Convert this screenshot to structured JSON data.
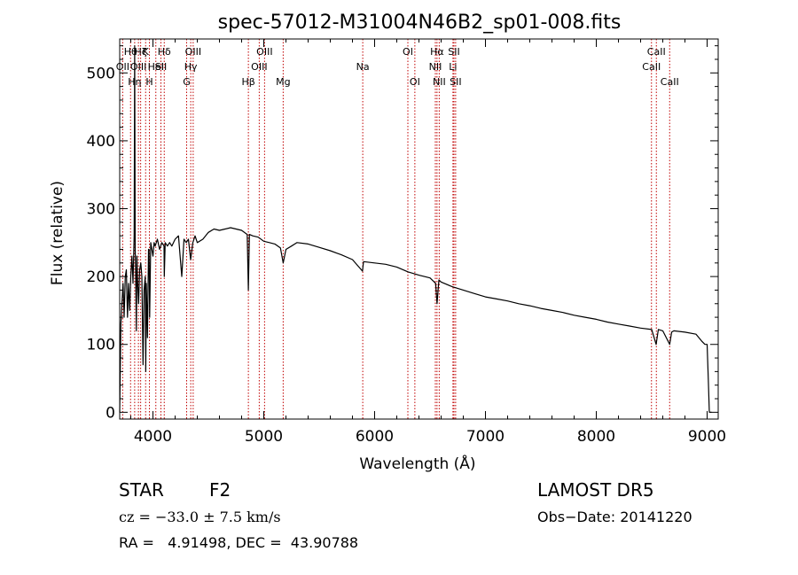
{
  "chart_data": {
    "type": "line",
    "title": "spec-57012-M31004N46B2_sp01-008.fits",
    "xlabel": "Wavelength (Å)",
    "ylabel": "Flux (relative)",
    "xlim": [
      3700,
      9100
    ],
    "ylim": [
      -10,
      550
    ],
    "xticks": [
      4000,
      5000,
      6000,
      7000,
      8000,
      9000
    ],
    "yticks": [
      0,
      100,
      200,
      300,
      400,
      500
    ],
    "series": [
      {
        "color": "#000000",
        "x": [
          3700,
          3705,
          3710,
          3720,
          3730,
          3740,
          3750,
          3760,
          3770,
          3780,
          3790,
          3800,
          3810,
          3820,
          3830,
          3835,
          3840,
          3845,
          3850,
          3855,
          3860,
          3865,
          3870,
          3880,
          3890,
          3900,
          3910,
          3920,
          3930,
          3935,
          3940,
          3950,
          3960,
          3965,
          3970,
          3980,
          3990,
          4000,
          4010,
          4020,
          4040,
          4060,
          4080,
          4100,
          4102,
          4110,
          4130,
          4150,
          4170,
          4200,
          4230,
          4260,
          4280,
          4300,
          4320,
          4340,
          4360,
          4380,
          4400,
          4450,
          4500,
          4550,
          4600,
          4650,
          4700,
          4750,
          4800,
          4850,
          4861,
          4870,
          4900,
          4950,
          5000,
          5050,
          5100,
          5150,
          5175,
          5200,
          5250,
          5300,
          5400,
          5500,
          5600,
          5700,
          5800,
          5890,
          5900,
          6000,
          6100,
          6200,
          6300,
          6400,
          6500,
          6550,
          6563,
          6580,
          6600,
          6700,
          6800,
          6900,
          7000,
          7100,
          7200,
          7300,
          7400,
          7500,
          7600,
          7700,
          7800,
          7900,
          8000,
          8100,
          8200,
          8300,
          8400,
          8500,
          8540,
          8560,
          8600,
          8662,
          8680,
          8700,
          8800,
          8900,
          8950,
          8980,
          9000,
          9010,
          9020,
          9040
        ],
        "y": [
          0,
          60,
          130,
          160,
          190,
          140,
          200,
          210,
          140,
          190,
          150,
          200,
          230,
          190,
          260,
          540,
          240,
          200,
          120,
          230,
          200,
          180,
          160,
          210,
          220,
          200,
          70,
          180,
          200,
          60,
          190,
          110,
          240,
          240,
          140,
          250,
          240,
          230,
          250,
          245,
          255,
          240,
          250,
          245,
          200,
          250,
          245,
          250,
          245,
          255,
          260,
          200,
          255,
          250,
          255,
          225,
          250,
          260,
          250,
          255,
          265,
          270,
          268,
          270,
          272,
          270,
          268,
          262,
          180,
          262,
          260,
          258,
          252,
          250,
          248,
          242,
          220,
          240,
          245,
          250,
          248,
          243,
          238,
          232,
          225,
          208,
          222,
          220,
          218,
          214,
          207,
          202,
          198,
          190,
          160,
          195,
          192,
          185,
          180,
          175,
          170,
          167,
          164,
          160,
          157,
          153,
          150,
          147,
          143,
          140,
          137,
          133,
          130,
          127,
          124,
          122,
          100,
          122,
          120,
          100,
          118,
          120,
          118,
          115,
          105,
          100,
          100,
          50,
          0,
          0
        ]
      }
    ],
    "lines": [
      {
        "x": 3727,
        "label": "OII",
        "row": 2
      },
      {
        "x": 3798,
        "label": "Hθ",
        "row": 1
      },
      {
        "x": 3835,
        "label": "Hη",
        "row": 3
      },
      {
        "x": 3869,
        "label": "OIII",
        "row": 2
      },
      {
        "x": 3889,
        "label": "Hζ",
        "row": 1
      },
      {
        "x": 3934,
        "label": "K",
        "row": 1
      },
      {
        "x": 3968,
        "label": "H",
        "row": 3
      },
      {
        "x": 4026,
        "label": "HeI",
        "row": 2
      },
      {
        "x": 4072,
        "label": "SII",
        "row": 2
      },
      {
        "x": 4102,
        "label": "Hδ",
        "row": 1
      },
      {
        "x": 4304,
        "label": "G",
        "row": 3
      },
      {
        "x": 4341,
        "label": "Hγ",
        "row": 2
      },
      {
        "x": 4363,
        "label": "OIII",
        "row": 1
      },
      {
        "x": 4861,
        "label": "Hβ",
        "row": 3
      },
      {
        "x": 4959,
        "label": "OIII",
        "row": 2
      },
      {
        "x": 5007,
        "label": "OIII",
        "row": 1
      },
      {
        "x": 5175,
        "label": "Mg",
        "row": 3
      },
      {
        "x": 5893,
        "label": "Na",
        "row": 2
      },
      {
        "x": 6300,
        "label": "OI",
        "row": 1
      },
      {
        "x": 6363,
        "label": "OI",
        "row": 3
      },
      {
        "x": 6548,
        "label": "NII",
        "row": 2
      },
      {
        "x": 6563,
        "label": "Hα",
        "row": 1
      },
      {
        "x": 6583,
        "label": "NII",
        "row": 3
      },
      {
        "x": 6707,
        "label": "Li",
        "row": 2
      },
      {
        "x": 6716,
        "label": "SII",
        "row": 1
      },
      {
        "x": 6731,
        "label": "SII",
        "row": 3
      },
      {
        "x": 8498,
        "label": "CaII",
        "row": 2
      },
      {
        "x": 8542,
        "label": "CaII",
        "row": 1
      },
      {
        "x": 8662,
        "label": "CaII",
        "row": 3
      }
    ],
    "line_color": "#c00000"
  },
  "footer": {
    "object_type": "STAR",
    "subclass": "F2",
    "cz": "cz = −33.0 ± 7.5 km/s",
    "radec": "RA =   4.91498, DEC =  43.90788",
    "survey": "LAMOST DR5",
    "obs_date": "Obs−Date: 20141220"
  }
}
